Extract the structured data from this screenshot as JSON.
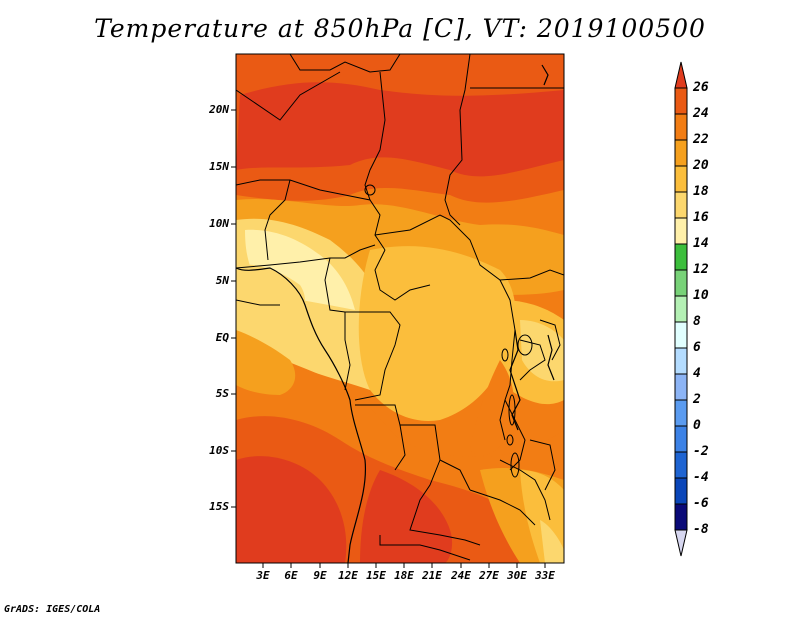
{
  "title": "Temperature at 850hPa [C], VT: 2019100500",
  "map": {
    "latitude_labels": [
      "20N",
      "15N",
      "10N",
      "5N",
      "EQ",
      "5S",
      "10S",
      "15S"
    ],
    "longitude_labels": [
      "3E",
      "6E",
      "9E",
      "12E",
      "15E",
      "18E",
      "21E",
      "24E",
      "27E",
      "30E",
      "33E"
    ]
  },
  "colorbar": {
    "labels": [
      "26",
      "24",
      "22",
      "20",
      "18",
      "16",
      "14",
      "12",
      "10",
      "8",
      "6",
      "4",
      "2",
      "0",
      "-2",
      "-4",
      "-6",
      "-8"
    ],
    "colors": [
      "#e03c1e",
      "#ea5a14",
      "#f27d14",
      "#f5a01e",
      "#fbbe3c",
      "#fcd76e",
      "#fff0aa",
      "#3cbe3c",
      "#78d278",
      "#b4f0b4",
      "#e1ffff",
      "#b4dcff",
      "#8cb4f5",
      "#5a9bf0",
      "#3c82e6",
      "#1e64d2",
      "#0a46b9",
      "#0a0a78",
      "#d7d7f0"
    ]
  },
  "footer": "GrADS: IGES/COLA"
}
